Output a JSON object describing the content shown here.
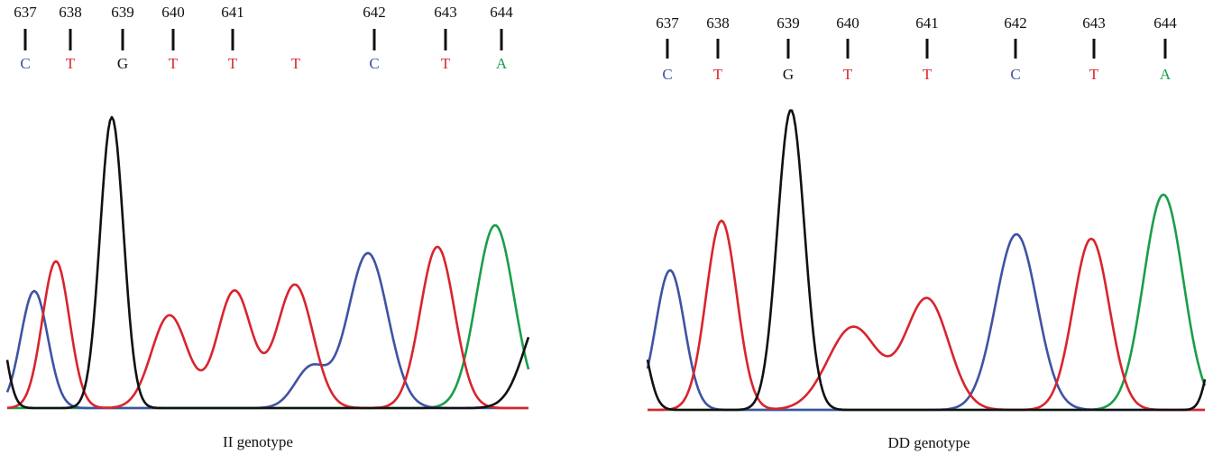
{
  "panels": [
    {
      "caption": "II genotype",
      "columns": [
        {
          "position": "637",
          "base": "C"
        },
        {
          "position": "638",
          "base": "T"
        },
        {
          "position": "639",
          "base": "G"
        },
        {
          "position": "640",
          "base": "T"
        },
        {
          "position": "641",
          "base": "T"
        },
        {
          "base": "T"
        },
        {
          "position": "642",
          "base": "C"
        },
        {
          "position": "643",
          "base": "T"
        },
        {
          "position": "644",
          "base": "A"
        }
      ]
    },
    {
      "caption": "DD genotype",
      "columns": [
        {
          "position": "637",
          "base": "C"
        },
        {
          "position": "638",
          "base": "T"
        },
        {
          "position": "639",
          "base": "G"
        },
        {
          "position": "640",
          "base": "T"
        },
        {
          "position": "641",
          "base": "T"
        },
        {
          "position": "642",
          "base": "C"
        },
        {
          "position": "643",
          "base": "T"
        },
        {
          "position": "644",
          "base": "A"
        }
      ]
    }
  ],
  "base_colors": {
    "A": "#1a9e4a",
    "C": "#3f53a3",
    "G": "#111111",
    "T": "#d9242c"
  }
}
